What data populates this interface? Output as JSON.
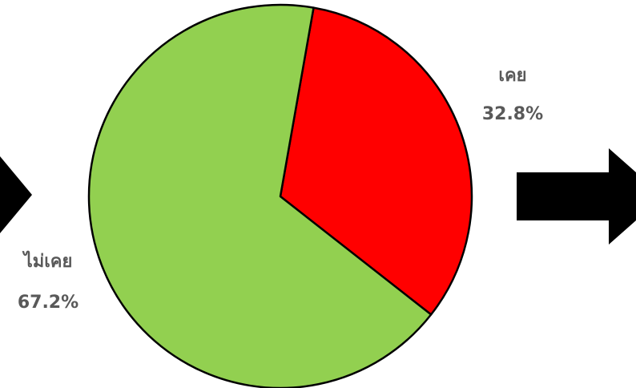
{
  "chart_data": {
    "type": "pie",
    "categories": [
      "เคย",
      "ไม่เคย"
    ],
    "values": [
      32.8,
      67.2
    ],
    "value_labels": [
      "32.8%",
      "67.2%"
    ],
    "colors": [
      "#ff0000",
      "#92d050"
    ]
  }
}
